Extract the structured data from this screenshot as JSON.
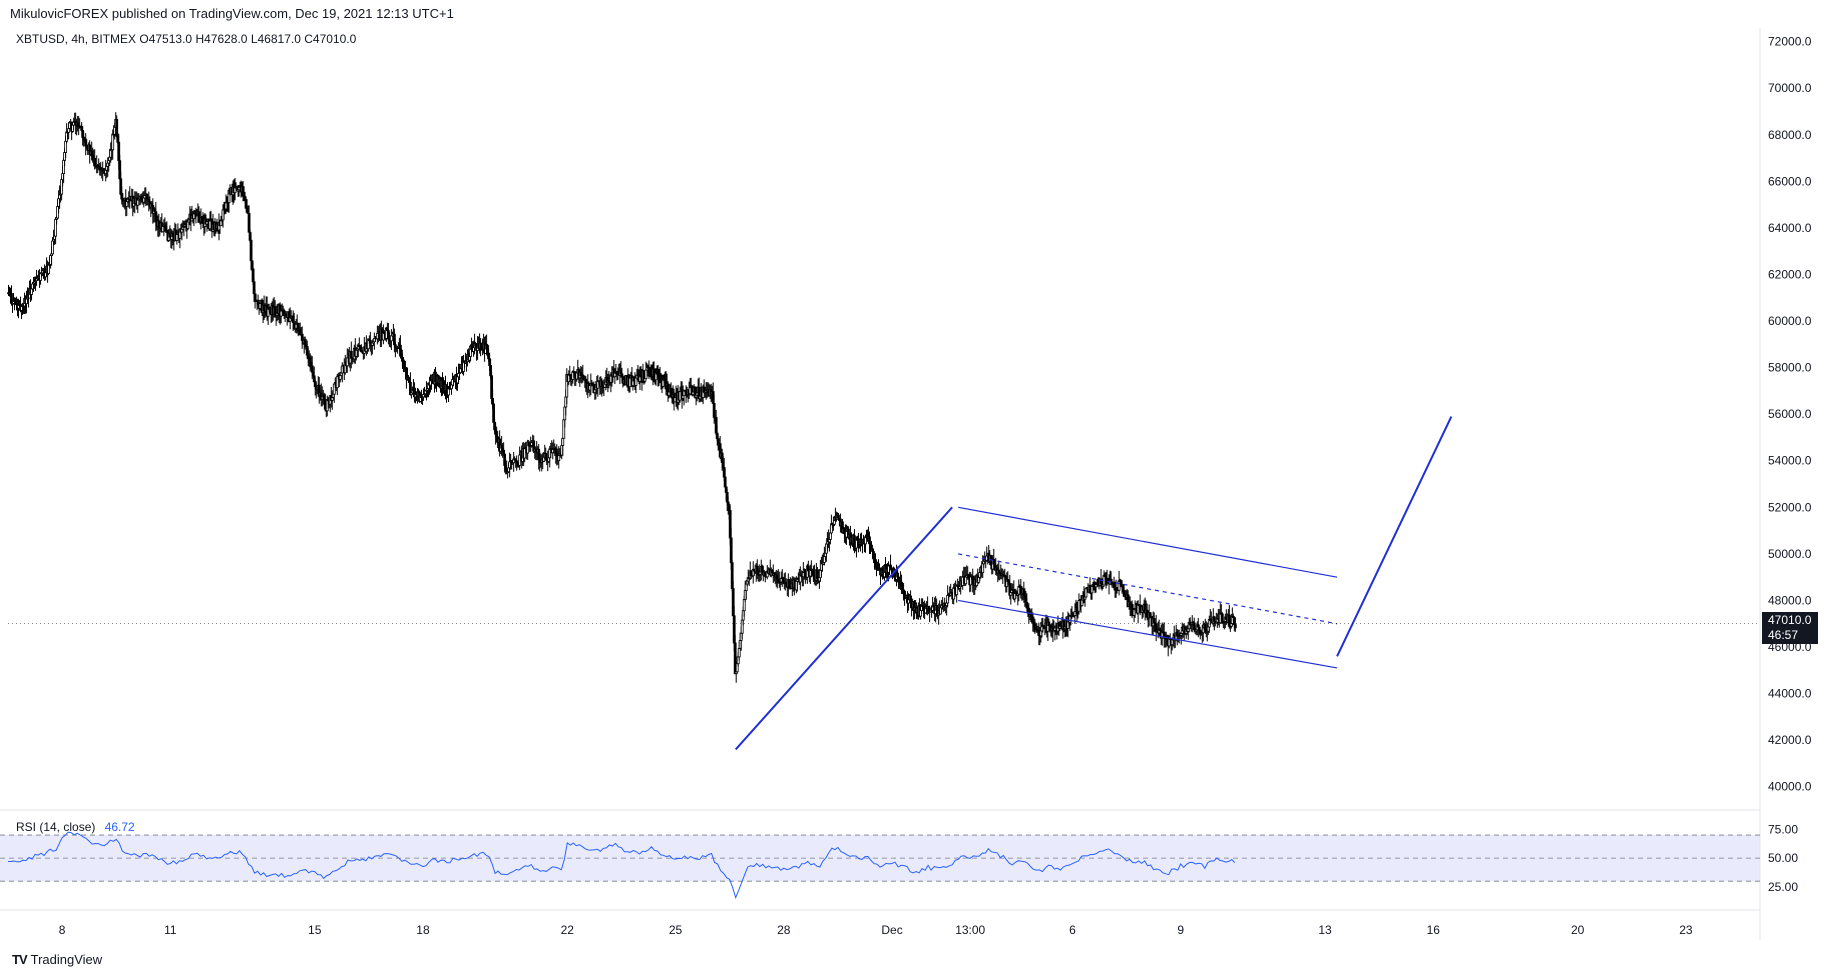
{
  "header": {
    "publisher_line": "MikulovicFOREX published on TradingView.com, Dec 19, 2021 12:13 UTC+1"
  },
  "legend": {
    "symbol": "XBTUSD, 4h, BITMEX",
    "open": "O47513.0",
    "high": "H47628.0",
    "low": "L46817.0",
    "close": "C47010.0"
  },
  "price_tag": {
    "price": "47010.0",
    "countdown": "46:57"
  },
  "rsi": {
    "label": "RSI (14, close)",
    "value": "46.72"
  },
  "footer": {
    "brand": "TradingView"
  },
  "colors": {
    "up": "#ffffff",
    "down": "#000000",
    "drawing": "#1e2fd6",
    "rsi_line": "#2962ff",
    "rsi_band": "#e0e3fb"
  },
  "chart_data": {
    "type": "candlestick",
    "price_axis": {
      "min": 39000,
      "max": 72500,
      "ticks": [
        "72000.0",
        "70000.0",
        "68000.0",
        "66000.0",
        "64000.0",
        "62000.0",
        "60000.0",
        "58000.0",
        "56000.0",
        "54000.0",
        "52000.0",
        "50000.0",
        "48000.0",
        "46000.0",
        "44000.0",
        "42000.0",
        "40000.0"
      ]
    },
    "time_axis": {
      "labels": [
        {
          "label": "8",
          "t": 48
        },
        {
          "label": "11",
          "t": 66
        },
        {
          "label": "15",
          "t": 90
        },
        {
          "label": "18",
          "t": 108
        },
        {
          "label": "22",
          "t": 132
        },
        {
          "label": "25",
          "t": 150
        },
        {
          "label": "28",
          "t": 168
        },
        {
          "label": "Dec",
          "t": 186
        },
        {
          "label": "13:00",
          "t": 199
        },
        {
          "label": "6",
          "t": 216
        },
        {
          "label": "9",
          "t": 234
        },
        {
          "label": "13",
          "t": 258
        },
        {
          "label": "16",
          "t": 276
        },
        {
          "label": "20",
          "t": 300
        },
        {
          "label": "23",
          "t": 318
        }
      ],
      "t_min": 39,
      "t_max": 327
    },
    "price_path": [
      [
        39,
        61200
      ],
      [
        41,
        60500
      ],
      [
        44,
        61800
      ],
      [
        46,
        62300
      ],
      [
        48,
        66000
      ],
      [
        49,
        68300
      ],
      [
        51,
        68500
      ],
      [
        53,
        67000
      ],
      [
        55,
        66500
      ],
      [
        56,
        66800
      ],
      [
        57,
        68800
      ],
      [
        58,
        65000
      ],
      [
        60,
        65200
      ],
      [
        62,
        65300
      ],
      [
        64,
        64200
      ],
      [
        66,
        63600
      ],
      [
        68,
        63800
      ],
      [
        70,
        64700
      ],
      [
        72,
        64200
      ],
      [
        74,
        64000
      ],
      [
        76,
        65500
      ],
      [
        78,
        65800
      ],
      [
        79,
        64500
      ],
      [
        80,
        61000
      ],
      [
        82,
        60400
      ],
      [
        84,
        60500
      ],
      [
        86,
        60200
      ],
      [
        88,
        59300
      ],
      [
        90,
        57500
      ],
      [
        92,
        56300
      ],
      [
        94,
        57500
      ],
      [
        96,
        58500
      ],
      [
        98,
        58800
      ],
      [
        100,
        59300
      ],
      [
        102,
        59500
      ],
      [
        104,
        59000
      ],
      [
        106,
        57000
      ],
      [
        108,
        56600
      ],
      [
        110,
        57600
      ],
      [
        112,
        57000
      ],
      [
        114,
        57700
      ],
      [
        116,
        58700
      ],
      [
        118,
        59000
      ],
      [
        119,
        58500
      ],
      [
        120,
        55200
      ],
      [
        122,
        53700
      ],
      [
        124,
        54000
      ],
      [
        126,
        54800
      ],
      [
        128,
        54000
      ],
      [
        130,
        54500
      ],
      [
        131,
        54000
      ],
      [
        132,
        57500
      ],
      [
        134,
        57700
      ],
      [
        136,
        57100
      ],
      [
        138,
        57300
      ],
      [
        140,
        57800
      ],
      [
        142,
        57400
      ],
      [
        144,
        57500
      ],
      [
        146,
        57900
      ],
      [
        148,
        57300
      ],
      [
        150,
        56700
      ],
      [
        152,
        57000
      ],
      [
        154,
        56900
      ],
      [
        156,
        57100
      ],
      [
        157,
        55000
      ],
      [
        158,
        53700
      ],
      [
        159,
        51700
      ],
      [
        160,
        44900
      ],
      [
        161,
        46600
      ],
      [
        162,
        49000
      ],
      [
        164,
        49300
      ],
      [
        166,
        49100
      ],
      [
        168,
        48800
      ],
      [
        170,
        48700
      ],
      [
        172,
        49300
      ],
      [
        174,
        49000
      ],
      [
        176,
        51200
      ],
      [
        177,
        51700
      ],
      [
        178,
        51000
      ],
      [
        180,
        50500
      ],
      [
        182,
        50600
      ],
      [
        184,
        49200
      ],
      [
        186,
        49400
      ],
      [
        188,
        48400
      ],
      [
        190,
        47500
      ],
      [
        192,
        47700
      ],
      [
        194,
        47500
      ],
      [
        196,
        48200
      ],
      [
        198,
        48900
      ],
      [
        200,
        48800
      ],
      [
        202,
        49800
      ],
      [
        204,
        49200
      ],
      [
        206,
        48300
      ],
      [
        208,
        48400
      ],
      [
        209,
        47300
      ],
      [
        210,
        46600
      ],
      [
        212,
        46900
      ],
      [
        214,
        46800
      ],
      [
        216,
        47200
      ],
      [
        218,
        48300
      ],
      [
        220,
        48700
      ],
      [
        222,
        48900
      ],
      [
        223,
        48600
      ],
      [
        224,
        48600
      ],
      [
        226,
        47600
      ],
      [
        228,
        47600
      ],
      [
        230,
        46800
      ],
      [
        232,
        46200
      ],
      [
        234,
        46700
      ],
      [
        236,
        46900
      ],
      [
        238,
        46800
      ],
      [
        240,
        47300
      ],
      [
        242,
        47200
      ],
      [
        243,
        47010
      ]
    ],
    "drawings": {
      "impulse_up": [
        [
          160,
          41600
        ],
        [
          196,
          52000
        ]
      ],
      "channel_upper": [
        [
          197,
          52000
        ],
        [
          260,
          49000
        ]
      ],
      "channel_lower": [
        [
          197,
          48000
        ],
        [
          260,
          45100
        ]
      ],
      "channel_mid": [
        [
          197,
          50000
        ],
        [
          260,
          47000
        ]
      ],
      "projection": [
        [
          260,
          45600
        ],
        [
          279,
          55900
        ]
      ]
    },
    "rsi_axis": {
      "ticks": [
        "75.00",
        "50.00",
        "25.00"
      ],
      "min": 5,
      "max": 90,
      "band": [
        30,
        70
      ]
    },
    "rsi_values": [
      [
        39,
        49
      ],
      [
        41,
        47
      ],
      [
        43,
        51
      ],
      [
        45,
        54
      ],
      [
        47,
        58
      ],
      [
        48,
        66
      ],
      [
        49,
        72
      ],
      [
        51,
        70
      ],
      [
        53,
        62
      ],
      [
        55,
        60
      ],
      [
        56,
        64
      ],
      [
        57,
        68
      ],
      [
        58,
        56
      ],
      [
        60,
        52
      ],
      [
        62,
        53
      ],
      [
        64,
        50
      ],
      [
        66,
        45
      ],
      [
        68,
        48
      ],
      [
        70,
        53
      ],
      [
        72,
        51
      ],
      [
        74,
        50
      ],
      [
        76,
        56
      ],
      [
        78,
        54
      ],
      [
        79,
        45
      ],
      [
        80,
        37
      ],
      [
        82,
        36
      ],
      [
        84,
        35
      ],
      [
        86,
        34
      ],
      [
        88,
        40
      ],
      [
        90,
        37
      ],
      [
        92,
        33
      ],
      [
        94,
        42
      ],
      [
        96,
        48
      ],
      [
        98,
        48
      ],
      [
        100,
        52
      ],
      [
        102,
        53
      ],
      [
        104,
        49
      ],
      [
        106,
        44
      ],
      [
        108,
        44
      ],
      [
        110,
        48
      ],
      [
        112,
        47
      ],
      [
        114,
        50
      ],
      [
        116,
        53
      ],
      [
        118,
        54
      ],
      [
        119,
        52
      ],
      [
        120,
        37
      ],
      [
        122,
        36
      ],
      [
        124,
        40
      ],
      [
        126,
        43
      ],
      [
        128,
        38
      ],
      [
        130,
        43
      ],
      [
        131,
        39
      ],
      [
        132,
        62
      ],
      [
        134,
        62
      ],
      [
        136,
        57
      ],
      [
        138,
        58
      ],
      [
        140,
        61
      ],
      [
        142,
        56
      ],
      [
        144,
        55
      ],
      [
        146,
        59
      ],
      [
        148,
        53
      ],
      [
        150,
        48
      ],
      [
        152,
        51
      ],
      [
        154,
        50
      ],
      [
        156,
        52
      ],
      [
        157,
        44
      ],
      [
        158,
        38
      ],
      [
        159,
        31
      ],
      [
        160,
        16
      ],
      [
        161,
        28
      ],
      [
        162,
        42
      ],
      [
        164,
        44
      ],
      [
        166,
        42
      ],
      [
        168,
        41
      ],
      [
        170,
        41
      ],
      [
        172,
        46
      ],
      [
        174,
        44
      ],
      [
        176,
        57
      ],
      [
        177,
        59
      ],
      [
        178,
        54
      ],
      [
        180,
        50
      ],
      [
        182,
        51
      ],
      [
        184,
        43
      ],
      [
        186,
        46
      ],
      [
        188,
        42
      ],
      [
        190,
        38
      ],
      [
        192,
        42
      ],
      [
        194,
        40
      ],
      [
        196,
        46
      ],
      [
        198,
        52
      ],
      [
        200,
        50
      ],
      [
        202,
        57
      ],
      [
        204,
        52
      ],
      [
        206,
        46
      ],
      [
        208,
        48
      ],
      [
        209,
        41
      ],
      [
        210,
        38
      ],
      [
        212,
        42
      ],
      [
        214,
        41
      ],
      [
        216,
        45
      ],
      [
        218,
        53
      ],
      [
        220,
        55
      ],
      [
        222,
        56
      ],
      [
        223,
        53
      ],
      [
        224,
        54
      ],
      [
        226,
        45
      ],
      [
        228,
        46
      ],
      [
        230,
        40
      ],
      [
        232,
        37
      ],
      [
        234,
        43
      ],
      [
        236,
        45
      ],
      [
        238,
        43
      ],
      [
        240,
        49
      ],
      [
        242,
        48
      ],
      [
        243,
        46
      ]
    ]
  }
}
